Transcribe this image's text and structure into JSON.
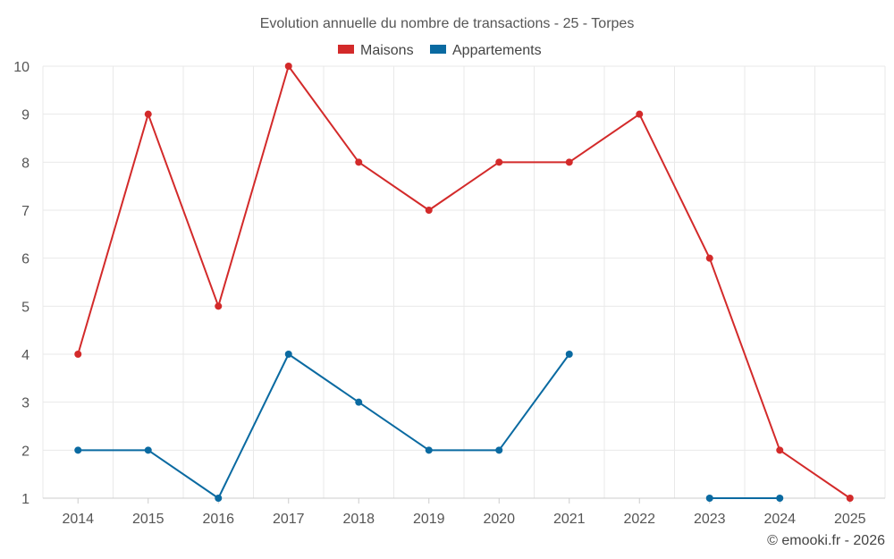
{
  "chart_data": {
    "type": "line",
    "title": "Evolution annuelle du nombre de transactions - 25 - Torpes",
    "categories": [
      "2014",
      "2015",
      "2016",
      "2017",
      "2018",
      "2019",
      "2020",
      "2021",
      "2022",
      "2023",
      "2024",
      "2025"
    ],
    "series": [
      {
        "name": "Maisons",
        "color": "#d32a2a",
        "values": [
          4,
          9,
          5,
          10,
          8,
          7,
          8,
          8,
          9,
          6,
          2,
          1
        ]
      },
      {
        "name": "Appartements",
        "color": "#0a6aa1",
        "values": [
          2,
          2,
          1,
          4,
          3,
          2,
          2,
          4,
          null,
          1,
          1,
          null
        ]
      }
    ],
    "ylim": [
      1,
      10
    ],
    "yticks": [
      1,
      2,
      3,
      4,
      5,
      6,
      7,
      8,
      9,
      10
    ],
    "xlabel": "",
    "ylabel": "",
    "grid": true,
    "legend_position": "top-center"
  },
  "credit": "© emooki.fr - 2026"
}
